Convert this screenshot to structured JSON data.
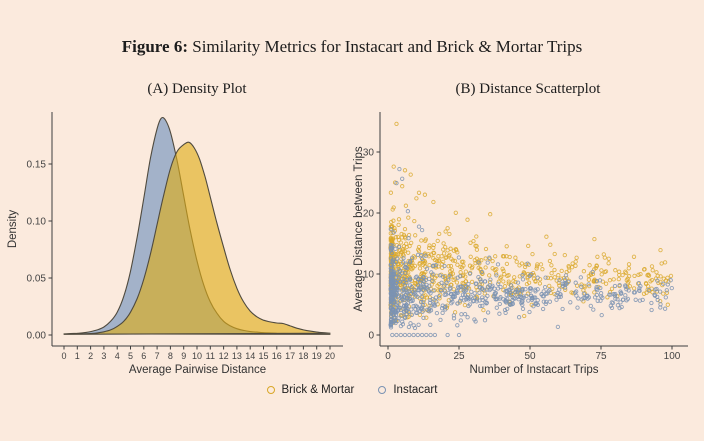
{
  "figure": {
    "title_prefix": "Figure 6:",
    "title": "Similarity Metrics for Instacart and Brick & Mortar Trips"
  },
  "legend": {
    "items": [
      {
        "label": "Brick & Mortar",
        "color": "#d9a728"
      },
      {
        "label": "Instacart",
        "color": "#7b93b3"
      }
    ]
  },
  "colors": {
    "background": "#fbeadd",
    "axis": "#3e3e3e",
    "tick_text": "#444444",
    "density_instacart_fill": "#a3b2c9",
    "density_brick_mortar_fill": "#dfac17",
    "density_outline": "#4f4a3e",
    "scatter_brick_mortar": "#d9a728",
    "scatter_instacart": "#7b93b3"
  },
  "chart_data": [
    {
      "id": "density",
      "type": "area",
      "title": "(A) Density Plot",
      "xlabel": "Average Pairwise Distance",
      "ylabel": "Density",
      "xlim": [
        0,
        20
      ],
      "ylim": [
        0,
        0.195
      ],
      "grid": false,
      "xticks": [
        0,
        1,
        2,
        3,
        4,
        5,
        6,
        7,
        8,
        9,
        10,
        11,
        12,
        13,
        14,
        15,
        16,
        17,
        18,
        19,
        20
      ],
      "yticks": [
        0,
        0.05,
        0.1,
        0.15
      ],
      "ytick_labels": [
        "0.00",
        "0.05",
        "0.10",
        "0.15"
      ],
      "series": [
        {
          "name": "Instacart",
          "fill": "#a3b2c9",
          "fill_opacity": 1,
          "outline": "#4f4a3e",
          "peak": {
            "x": 7.3,
            "density": 0.19
          },
          "points": [
            [
              0,
              0.001
            ],
            [
              0.5,
              0.0012
            ],
            [
              1,
              0.0015
            ],
            [
              1.5,
              0.002
            ],
            [
              2,
              0.003
            ],
            [
              2.5,
              0.0045
            ],
            [
              3,
              0.007
            ],
            [
              3.5,
              0.012
            ],
            [
              4,
              0.02
            ],
            [
              4.5,
              0.034
            ],
            [
              5,
              0.056
            ],
            [
              5.5,
              0.086
            ],
            [
              6,
              0.12
            ],
            [
              6.5,
              0.155
            ],
            [
              7,
              0.181
            ],
            [
              7.3,
              0.19
            ],
            [
              7.6,
              0.189
            ],
            [
              8,
              0.178
            ],
            [
              8.5,
              0.153
            ],
            [
              9,
              0.122
            ],
            [
              9.5,
              0.091
            ],
            [
              10,
              0.065
            ],
            [
              10.5,
              0.044
            ],
            [
              11,
              0.029
            ],
            [
              11.5,
              0.019
            ],
            [
              12,
              0.012
            ],
            [
              12.5,
              0.008
            ],
            [
              13,
              0.0055
            ],
            [
              13.5,
              0.004
            ],
            [
              14,
              0.003
            ],
            [
              14.5,
              0.0025
            ],
            [
              15,
              0.002
            ],
            [
              16,
              0.0015
            ],
            [
              17,
              0.0012
            ],
            [
              18,
              0.001
            ],
            [
              19,
              0.0008
            ],
            [
              20,
              0.0006
            ]
          ]
        },
        {
          "name": "Brick & Mortar",
          "fill": "#dfac17",
          "fill_opacity": 0.62,
          "outline": "#4f4a3e",
          "peak": {
            "x": 9.3,
            "density": 0.168
          },
          "points": [
            [
              0,
              0.0006
            ],
            [
              1,
              0.0008
            ],
            [
              2,
              0.0012
            ],
            [
              2.5,
              0.0018
            ],
            [
              3,
              0.0028
            ],
            [
              3.5,
              0.0045
            ],
            [
              4,
              0.0075
            ],
            [
              4.5,
              0.012
            ],
            [
              5,
              0.02
            ],
            [
              5.5,
              0.032
            ],
            [
              6,
              0.049
            ],
            [
              6.5,
              0.071
            ],
            [
              7,
              0.097
            ],
            [
              7.5,
              0.123
            ],
            [
              8,
              0.146
            ],
            [
              8.5,
              0.161
            ],
            [
              9,
              0.167
            ],
            [
              9.4,
              0.169
            ],
            [
              9.8,
              0.164
            ],
            [
              10.2,
              0.154
            ],
            [
              10.6,
              0.139
            ],
            [
              11,
              0.121
            ],
            [
              11.5,
              0.098
            ],
            [
              12,
              0.077
            ],
            [
              12.5,
              0.057
            ],
            [
              13,
              0.041
            ],
            [
              13.5,
              0.029
            ],
            [
              14,
              0.021
            ],
            [
              14.5,
              0.016
            ],
            [
              15,
              0.013
            ],
            [
              15.5,
              0.0115
            ],
            [
              16,
              0.0105
            ],
            [
              16.5,
              0.01
            ],
            [
              17,
              0.008
            ],
            [
              17.5,
              0.006
            ],
            [
              18,
              0.0045
            ],
            [
              18.5,
              0.0034
            ],
            [
              19,
              0.0026
            ],
            [
              19.5,
              0.002
            ],
            [
              20,
              0.0016
            ]
          ]
        }
      ]
    },
    {
      "id": "scatter",
      "type": "scatter",
      "title": "(B) Distance Scatterplot",
      "xlabel": "Number of Instacart Trips",
      "ylabel": "Average Distance between Trips",
      "xlim": [
        0,
        100
      ],
      "ylim": [
        0,
        36
      ],
      "grid": false,
      "xticks": [
        0,
        25,
        50,
        75,
        100
      ],
      "yticks": [
        0,
        10,
        20,
        30
      ],
      "marker": {
        "shape": "open-circle",
        "radius": 1.7,
        "stroke_width": 0.9
      },
      "note": "Dense overplotted cloud; individual points reconstructed from the visible distribution (denser at low trip counts, Brick & Mortar centered near y=10, Instacart near y=6-7, spread shrinking as trips increase).",
      "series": [
        {
          "name": "Brick & Mortar",
          "color": "#d9a728",
          "opacity": 0.8,
          "n": 730,
          "seed": 11,
          "x_dist": {
            "min": 1,
            "max": 100,
            "power": 2.6
          },
          "y_trend": {
            "intercept": 10.4,
            "slope": -0.014
          },
          "y_sd": {
            "base": 1.3,
            "extra": 2.7,
            "decay": 45
          },
          "y_min": 2.0,
          "outlier_rate": 0.02,
          "outlier_lift": [
            6,
            14
          ],
          "outliers": [
            [
              3,
              34.6
            ],
            [
              2,
              27.6
            ],
            [
              6,
              27
            ],
            [
              8,
              26.3
            ],
            [
              2.5,
              25
            ],
            [
              5,
              24.4
            ],
            [
              13,
              23
            ],
            [
              10,
              22.4
            ],
            [
              16,
              21.8
            ],
            [
              2,
              20.9
            ],
            [
              36,
              19.8
            ],
            [
              28,
              18.9
            ],
            [
              21,
              17.5
            ]
          ]
        },
        {
          "name": "Instacart",
          "color": "#7b93b3",
          "opacity": 0.85,
          "n": 700,
          "seed": 7,
          "x_dist": {
            "min": 1,
            "max": 100,
            "power": 2.6
          },
          "y_trend": {
            "intercept": 6.9,
            "slope": -0.006
          },
          "y_sd": {
            "base": 1.1,
            "extra": 2.0,
            "decay": 45
          },
          "y_min": 1.0,
          "outlier_rate": 0.01,
          "outlier_lift": [
            5,
            12
          ],
          "outliers": [
            [
              4,
              27.2
            ],
            [
              5,
              25.6
            ],
            [
              3,
              24.9
            ],
            [
              7,
              20.3
            ],
            [
              12,
              17.2
            ],
            [
              2,
              16.8
            ]
          ],
          "zero_row": [
            1.5,
            3,
            4.5,
            6,
            7.5,
            9,
            10.5,
            12,
            13.5,
            15,
            16.5,
            21,
            25
          ]
        }
      ]
    }
  ]
}
